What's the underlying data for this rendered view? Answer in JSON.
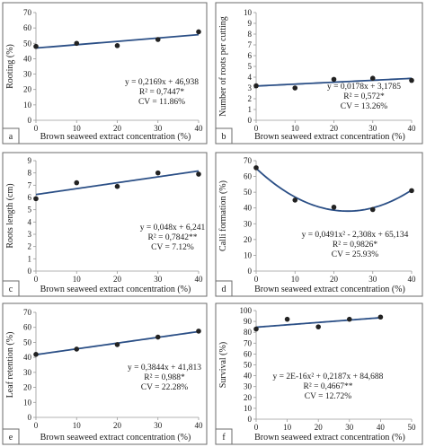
{
  "chart_data": [
    {
      "type": "scatter",
      "panel": "a",
      "xlabel": "Brown seaweed extract concentration (%)",
      "ylabel": "Rooting (%)",
      "x": [
        0,
        10,
        20,
        30,
        40
      ],
      "y": [
        48,
        50,
        48.5,
        52.5,
        57.5
      ],
      "xlim": [
        0,
        40
      ],
      "ylim": [
        0,
        70
      ],
      "xticks": [
        0,
        10,
        20,
        30,
        40
      ],
      "yticks": [
        0,
        10,
        20,
        30,
        40,
        50,
        60,
        70
      ],
      "trend": {
        "type": "linear",
        "a": 0.2169,
        "b": 46.938
      },
      "equation": [
        "y = 0,2169x + 46,938",
        "R² = 0,7447*",
        "CV = 11.86%"
      ]
    },
    {
      "type": "scatter",
      "panel": "b",
      "xlabel": "Brown seaweed extract concentration (%)",
      "ylabel": "Number of roots per cutting",
      "x": [
        0,
        10,
        20,
        30,
        40
      ],
      "y": [
        3.2,
        3.0,
        3.8,
        3.9,
        3.7
      ],
      "xlim": [
        0,
        40
      ],
      "ylim": [
        0,
        10
      ],
      "xticks": [
        0,
        10,
        20,
        30,
        40
      ],
      "yticks": [
        0,
        1,
        2,
        3,
        4,
        5,
        6,
        7,
        8,
        9,
        10
      ],
      "trend": {
        "type": "linear",
        "a": 0.0178,
        "b": 3.1785
      },
      "equation": [
        "y = 0,0178x + 3,1785",
        "R² = 0,572*",
        "CV = 13.26%"
      ]
    },
    {
      "type": "scatter",
      "panel": "c",
      "xlabel": "Brown seaweed extract concentration (%)",
      "ylabel": "Roots length (cm)",
      "x": [
        0,
        10,
        20,
        30,
        40
      ],
      "y": [
        5.9,
        7.2,
        6.9,
        8.0,
        7.9
      ],
      "xlim": [
        0,
        40
      ],
      "ylim": [
        0,
        9
      ],
      "xticks": [
        0,
        10,
        20,
        30,
        40
      ],
      "yticks": [
        0,
        1,
        2,
        3,
        4,
        5,
        6,
        7,
        8,
        9
      ],
      "trend": {
        "type": "linear",
        "a": 0.048,
        "b": 6.241
      },
      "equation": [
        "y = 0,048x + 6,241",
        "R² = 0,7842**",
        "CV = 7.12%"
      ]
    },
    {
      "type": "scatter",
      "panel": "d",
      "xlabel": "Brown seaweed extract concentration (%)",
      "ylabel": "Calli formation (%)",
      "x": [
        0,
        10,
        20,
        30,
        40
      ],
      "y": [
        65.5,
        45,
        40.5,
        39,
        51
      ],
      "xlim": [
        0,
        40
      ],
      "ylim": [
        0,
        70
      ],
      "xticks": [
        0,
        10,
        20,
        30,
        40
      ],
      "yticks": [
        0,
        10,
        20,
        30,
        40,
        50,
        60,
        70
      ],
      "trend": {
        "type": "quadratic",
        "a2": 0.0491,
        "a": -2.308,
        "b": 65.134
      },
      "equation": [
        "y = 0,0491x² - 2,308x + 65,134",
        "R² = 0,9826*",
        "CV = 25.93%"
      ]
    },
    {
      "type": "scatter",
      "panel": "e",
      "xlabel": "Brown seaweed extract concentration (%)",
      "ylabel": "Leaf retention (%)",
      "x": [
        0,
        10,
        20,
        30,
        40
      ],
      "y": [
        42,
        45.5,
        48.5,
        53.5,
        57.5
      ],
      "xlim": [
        0,
        40
      ],
      "ylim": [
        0,
        70
      ],
      "xticks": [
        0,
        10,
        20,
        30,
        40
      ],
      "yticks": [
        0,
        10,
        20,
        30,
        40,
        50,
        60,
        70
      ],
      "trend": {
        "type": "linear",
        "a": 0.3844,
        "b": 41.813
      },
      "equation": [
        "y = 0,3844x + 41,813",
        "R² = 0,988*",
        "CV = 22.28%"
      ]
    },
    {
      "type": "scatter",
      "panel": "f",
      "xlabel": "Brown seaweed extract concentration (%)",
      "ylabel": "Survival (%)",
      "x": [
        0,
        10,
        20,
        30,
        40
      ],
      "y": [
        83,
        92,
        85,
        92,
        94
      ],
      "xlim": [
        0,
        50
      ],
      "ylim": [
        0,
        100
      ],
      "xticks": [
        0,
        10,
        20,
        30,
        40,
        50
      ],
      "yticks": [
        0,
        10,
        20,
        30,
        40,
        50,
        60,
        70,
        80,
        90,
        100
      ],
      "trend": {
        "type": "linear",
        "a": 0.2187,
        "b": 84.688
      },
      "equation": [
        "y = 2E-16x² + 0,2187x + 84,688",
        "R² = 0,4667**",
        "CV = 12.72%"
      ]
    }
  ]
}
